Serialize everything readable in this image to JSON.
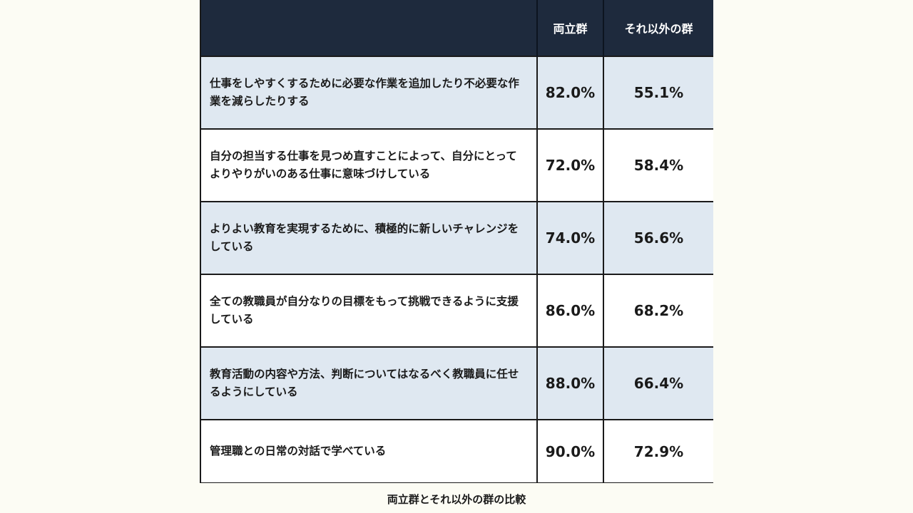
{
  "chart_data": {
    "type": "table",
    "title": "両立群とそれ以外の群の比較",
    "columns": [
      "",
      "両立群",
      "それ以外の群"
    ],
    "rows": [
      {
        "label": "仕事をしやすくするために必要な作業を追加したり不必要な作業を減らしたりする",
        "both": "82.0%",
        "other": "55.1%"
      },
      {
        "label": "自分の担当する仕事を見つめ直すことによって、自分にとってよりやりがいのある仕事に意味づけしている",
        "both": "72.0%",
        "other": "58.4%"
      },
      {
        "label": "よりよい教育を実現するために、積極的に新しいチャレンジをしている",
        "both": "74.0%",
        "other": "56.6%"
      },
      {
        "label": "全ての教職員が自分なりの目標をもって挑戦できるように支援している",
        "both": "86.0%",
        "other": "68.2%"
      },
      {
        "label": "教育活動の内容や方法、判断についてはなるべく教職員に任せるようにしている",
        "both": "88.0%",
        "other": "66.4%"
      },
      {
        "label": "管理職との日常の対話で学べている",
        "both": "90.0%",
        "other": "72.9%"
      }
    ]
  },
  "colors": {
    "header_bg": "#1e2a3d",
    "shaded_row": "#dfe8f1",
    "background": "#fcfcf4"
  }
}
